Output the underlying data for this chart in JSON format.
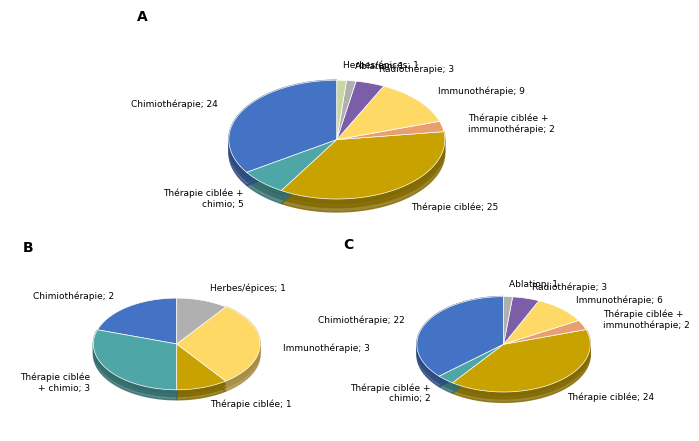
{
  "chart_A": {
    "labels": [
      "Chimiothérapie",
      "Thérapie ciblée +\nchimio",
      "Thérapie ciblée",
      "Thérapie ciblée +\nimmunothérapie",
      "Immunothérapie",
      "Radiothérapie",
      "Ablation",
      "Herbes/épices"
    ],
    "values": [
      24,
      5,
      25,
      2,
      9,
      3,
      1,
      1
    ],
    "colors": [
      "#4472C4",
      "#4EA6A6",
      "#C8A200",
      "#E8A070",
      "#FFD966",
      "#7B5EA7",
      "#B0B0B0",
      "#C8D8A0"
    ],
    "label": "A"
  },
  "chart_B": {
    "labels": [
      "Chimiothérapie",
      "Thérapie ciblée\n+ chimio",
      "Thérapie ciblée",
      "Immunothérapie",
      "Herbes/épices"
    ],
    "values": [
      2,
      3,
      1,
      3,
      1
    ],
    "colors": [
      "#4472C4",
      "#4EA6A6",
      "#C8A200",
      "#FFD966",
      "#B0B0B0"
    ],
    "label": "B"
  },
  "chart_C": {
    "labels": [
      "Chimiothérapie",
      "Thérapie ciblée +\nchimio",
      "Thérapie ciblée",
      "Thérapie ciblée +\nimmunothérapie",
      "Immunothérapie",
      "Radiothérapie",
      "Ablation"
    ],
    "values": [
      22,
      2,
      24,
      2,
      6,
      3,
      1
    ],
    "colors": [
      "#4472C4",
      "#4EA6A6",
      "#C8A200",
      "#E8A070",
      "#FFD966",
      "#7B5EA7",
      "#B0B0B0"
    ],
    "label": "C"
  },
  "fontsize_labels": 6.5,
  "fontsize_letters": 10,
  "bg_color": "#FFFFFF"
}
